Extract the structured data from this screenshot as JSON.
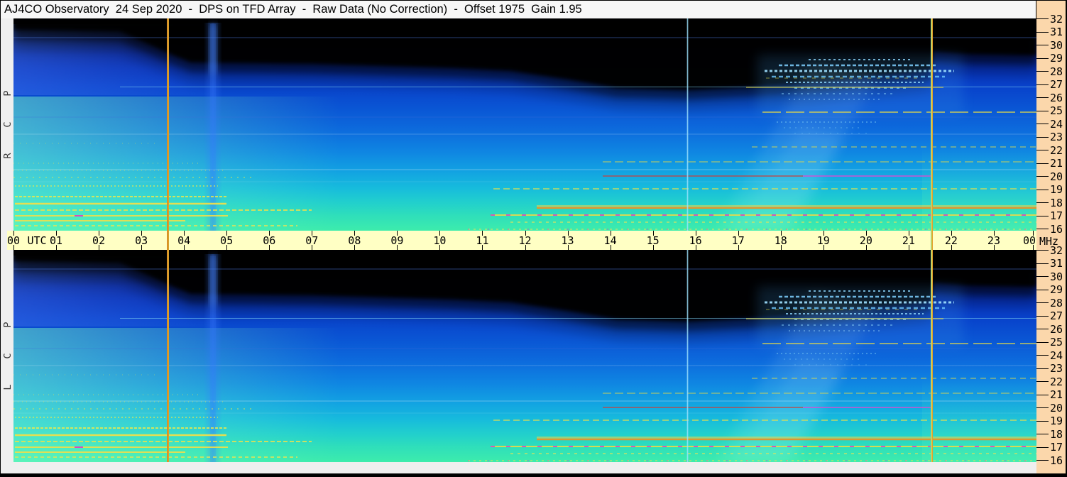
{
  "window": {
    "title": "AJ4CO Observatory  24 Sep 2020  -  DPS on TFD Array  -  Raw Data (No Correction)  -  Offset 1975  Gain 1.95"
  },
  "panels": [
    {
      "id": "rcp",
      "polarization_label": "R C P",
      "letters_top_to_bottom": [
        "P",
        "C",
        "R"
      ]
    },
    {
      "id": "lcp",
      "polarization_label": "L C P",
      "letters_top_to_bottom": [
        "P",
        "C",
        "L"
      ]
    }
  ],
  "time_axis": {
    "unit_label": "UTC",
    "tick_labels": [
      "00",
      "01",
      "02",
      "03",
      "04",
      "05",
      "06",
      "07",
      "08",
      "09",
      "10",
      "11",
      "12",
      "13",
      "14",
      "15",
      "16",
      "17",
      "18",
      "19",
      "20",
      "21",
      "22",
      "23",
      "00"
    ]
  },
  "freq_axis": {
    "unit_label": "MHz",
    "tick_labels": [
      "32",
      "31",
      "30",
      "29",
      "28",
      "27",
      "26",
      "25",
      "24",
      "23",
      "22",
      "21",
      "20",
      "19",
      "18",
      "17",
      "16"
    ]
  },
  "colors": {
    "title_bar_bg": "#f7f7f7",
    "time_axis_bg": "#ffffc4",
    "freq_axis_bg": "#fbd7ab",
    "side_strip_bg": "#efefef",
    "outer_border": "#000000",
    "marker_yellow": "#cfca38",
    "marker_orange": "#e0761f",
    "marker_cyan_edge": "#35c4e2"
  },
  "chart_data": {
    "type": "heatmap",
    "subtype": "radio dynamic spectrum, two stacked spectrogram panels",
    "title": "AJ4CO Observatory 24 Sep 2020 - DPS on TFD Array - Raw Data (No Correction) - Offset 1975 Gain 1.95",
    "x_axis": {
      "label": "UTC",
      "range_hours": [
        0,
        24
      ],
      "tick_interval_hours": 1
    },
    "y_axis": {
      "label": "MHz",
      "range_mhz": [
        16,
        32
      ],
      "tick_interval_mhz": 1,
      "orientation": "32 MHz at top, 16 MHz at bottom"
    },
    "panels": [
      {
        "name": "RCP",
        "description": "right circular polarization spectrogram, 00-24 UTC, 16-32 MHz"
      },
      {
        "name": "LCP",
        "description": "left circular polarization spectrogram, 00-24 UTC, 16-32 MHz"
      }
    ],
    "palette_low_to_high": [
      "#000000",
      "#021052",
      "#0631b6",
      "#0d6cdd",
      "#12a2e2",
      "#22d0cc",
      "#3decac",
      "#e8e84f",
      "#e2932c",
      "#d83cc8"
    ],
    "markers": [
      {
        "utc_hours": 3.62,
        "label": "vertical marker line",
        "colors": [
          "#cfca38",
          "#e0761f",
          "#cfca38"
        ],
        "spans": "both panels and time axis"
      },
      {
        "utc_hours": 21.55,
        "label": "vertical marker line",
        "colors": [
          "#35c4e2",
          "#ead33e",
          "#df7b1e"
        ],
        "spans": "both panels and time axis"
      }
    ],
    "features": [
      {
        "type": "vertical-line",
        "utc": "15:49",
        "description": "thin pale-cyan line through both panels"
      },
      {
        "type": "bright-region",
        "utc": "00:00-02:20",
        "mhz": "16-22",
        "description": "bright green-cyan area with dense yellow interference streaks"
      },
      {
        "type": "vertical-smear",
        "utc": "04:25-04:55",
        "description": "faint brighter blue column, strongest near 30-32 MHz"
      },
      {
        "type": "dark-region",
        "utc": "11:00-21:30",
        "mhz": "29-32",
        "description": "black band at top, deepest near 15:30-16:30"
      },
      {
        "type": "speckle-band",
        "utc": "17:00-21:30",
        "mhz": "26-30",
        "description": "patchy cyan shortwave-station streaks"
      },
      {
        "type": "diagonal-brightening",
        "utc": "17:00-20:30",
        "mhz": "16-29",
        "description": "faint fan-shaped brightening rising toward higher frequency"
      },
      {
        "type": "interference-lines",
        "utc": "11:00-24:00",
        "mhz": "16-18.5",
        "description": "horizontal yellow/orange RFI lines, strongest orange band near 17.5 MHz"
      },
      {
        "type": "interference-line",
        "utc": "14:00-21:30",
        "mhz": "20",
        "description": "red then magenta segmented horizontal line"
      }
    ]
  }
}
